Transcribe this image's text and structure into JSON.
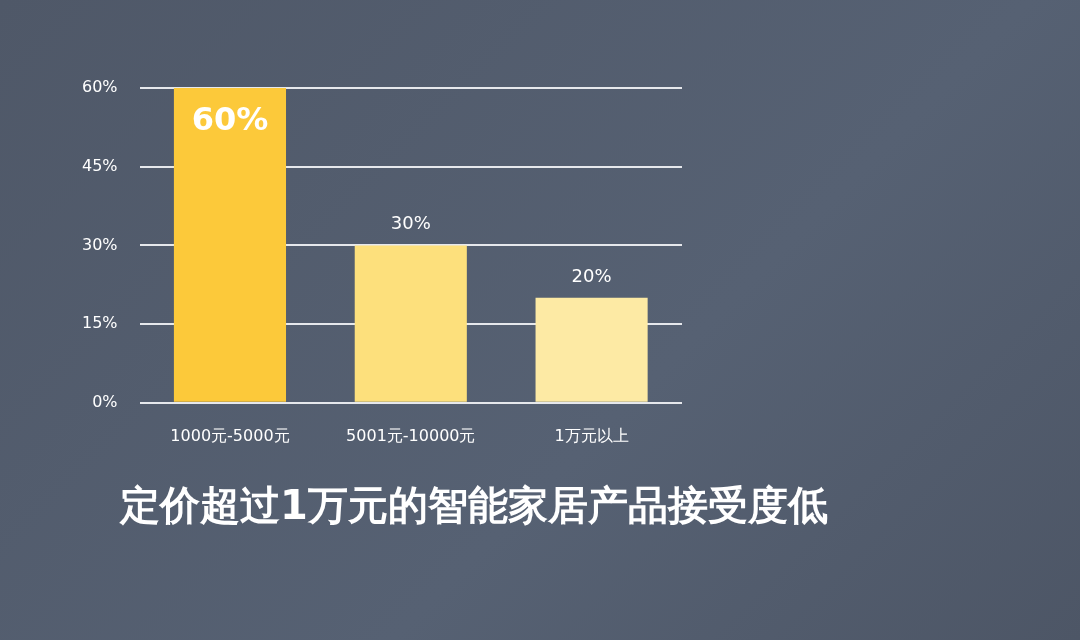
{
  "chart_data": {
    "type": "bar",
    "title": "定价超过1万元的智能家居产品接受度低",
    "categories": [
      "1000元-5000元",
      "5001元-10000元",
      "1万元以上"
    ],
    "values": [
      60,
      30,
      20
    ],
    "colors": [
      "#fcc93a",
      "#fde07c",
      "#fdeaa4"
    ],
    "value_labels": [
      "60%",
      "30%",
      "20%"
    ],
    "ylim": [
      0,
      60
    ],
    "yticks": [
      {
        "value": 0,
        "label": "0%"
      },
      {
        "value": 15,
        "label": "15%"
      },
      {
        "value": 30,
        "label": "30%"
      },
      {
        "value": 45,
        "label": "45%"
      },
      {
        "value": 60,
        "label": "60%"
      }
    ],
    "grid": "y",
    "legend": false
  }
}
